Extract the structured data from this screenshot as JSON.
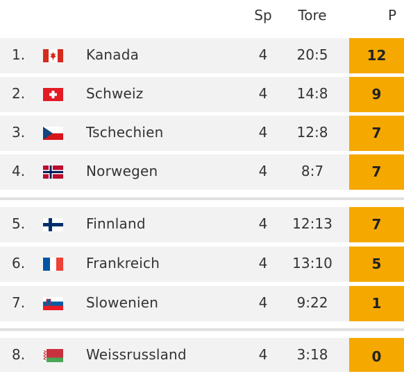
{
  "header": {
    "sp": "Sp",
    "tore": "Tore",
    "p": "P"
  },
  "rows": [
    {
      "rank": "1.",
      "country": "Kanada",
      "flag": "canada-flag-icon",
      "sp": "4",
      "tore": "20:5",
      "p": "12"
    },
    {
      "rank": "2.",
      "country": "Schweiz",
      "flag": "switzerland-flag-icon",
      "sp": "4",
      "tore": "14:8",
      "p": "9"
    },
    {
      "rank": "3.",
      "country": "Tschechien",
      "flag": "czech-flag-icon",
      "sp": "4",
      "tore": "12:8",
      "p": "7"
    },
    {
      "rank": "4.",
      "country": "Norwegen",
      "flag": "norway-flag-icon",
      "sp": "4",
      "tore": "8:7",
      "p": "7"
    },
    {
      "rank": "5.",
      "country": "Finnland",
      "flag": "finland-flag-icon",
      "sp": "4",
      "tore": "12:13",
      "p": "7"
    },
    {
      "rank": "6.",
      "country": "Frankreich",
      "flag": "france-flag-icon",
      "sp": "4",
      "tore": "13:10",
      "p": "5"
    },
    {
      "rank": "7.",
      "country": "Slowenien",
      "flag": "slovenia-flag-icon",
      "sp": "4",
      "tore": "9:22",
      "p": "1"
    },
    {
      "rank": "8.",
      "country": "Weissrussland",
      "flag": "belarus-flag-icon",
      "sp": "4",
      "tore": "3:18",
      "p": "0"
    }
  ],
  "colors": {
    "points_bg": "#f5a800",
    "row_bg": "#f2f2f2",
    "separator": "#e0e0e0"
  }
}
